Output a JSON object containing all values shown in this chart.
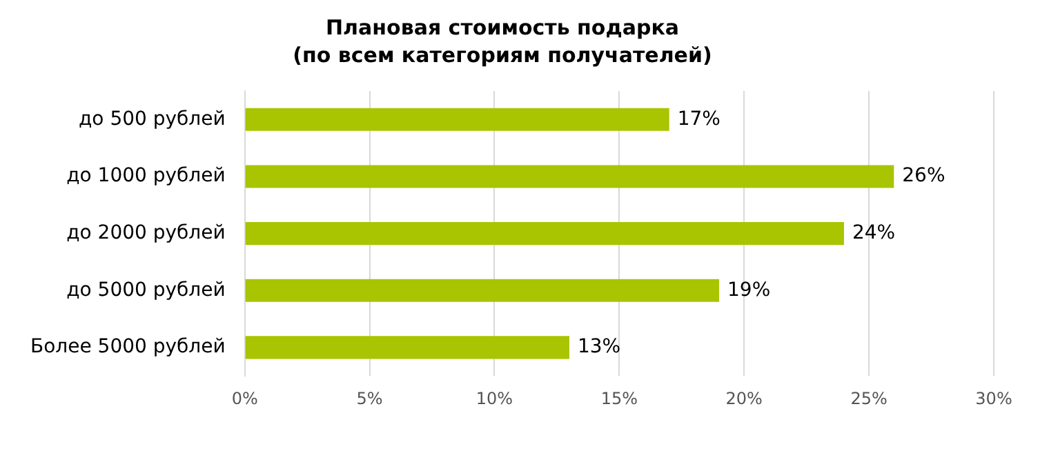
{
  "chart_data": {
    "type": "bar",
    "orientation": "horizontal",
    "title": "Плановая стоимость подарка",
    "subtitle": "(по всем категориям получателей)",
    "categories": [
      "до 500 рублей",
      "до 1000 рублей",
      "до 2000 рублей",
      "до 5000 рублей",
      "Более 5000 рублей"
    ],
    "values": [
      17,
      26,
      24,
      19,
      13
    ],
    "value_labels": [
      "17%",
      "26%",
      "24%",
      "19%",
      "13%"
    ],
    "color": "#a9c400",
    "xlim": [
      0,
      30
    ],
    "xticks": [
      {
        "value": 0,
        "label": "0%"
      },
      {
        "value": 5,
        "label": "5%"
      },
      {
        "value": 10,
        "label": "10%"
      },
      {
        "value": 15,
        "label": "15%"
      },
      {
        "value": 20,
        "label": "20%"
      },
      {
        "value": 25,
        "label": "25%"
      },
      {
        "value": 30,
        "label": "30%"
      }
    ],
    "grid": "x",
    "legend": false
  }
}
